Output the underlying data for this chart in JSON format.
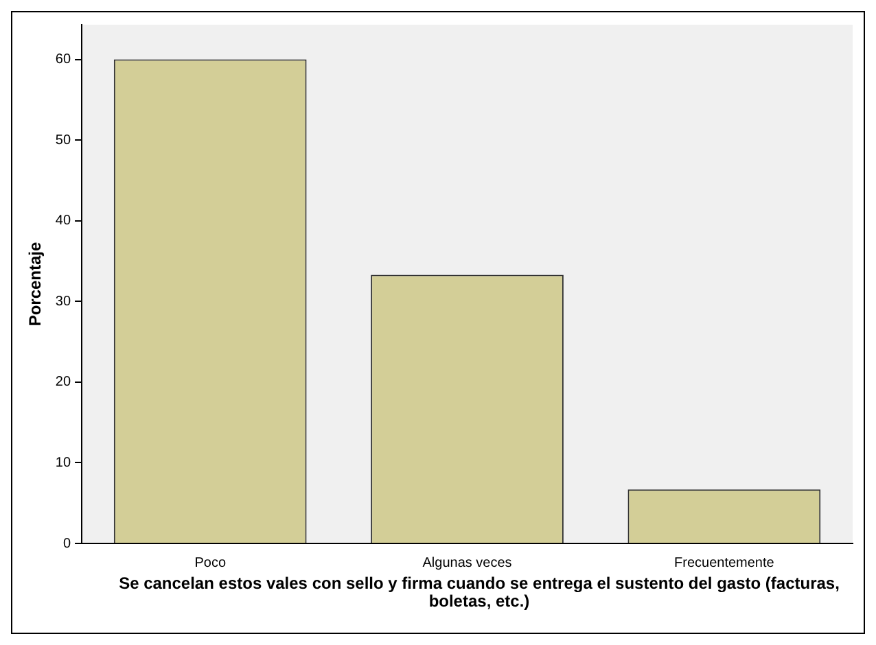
{
  "chart_data": {
    "type": "bar",
    "xlabel": "Se cancelan estos vales con sello y firma cuando se entrega el sustento del gasto (facturas, boletas, etc.)",
    "ylabel": "Porcentaje",
    "categories": [
      "Poco",
      "Algunas veces",
      "Frecuentemente"
    ],
    "values": [
      60,
      33.3,
      6.7
    ],
    "color": "#d3ce97",
    "ylim": [
      0,
      64.3
    ],
    "yticks": [
      0,
      10,
      20,
      30,
      40,
      50,
      60
    ],
    "grid": false,
    "legend": false
  }
}
